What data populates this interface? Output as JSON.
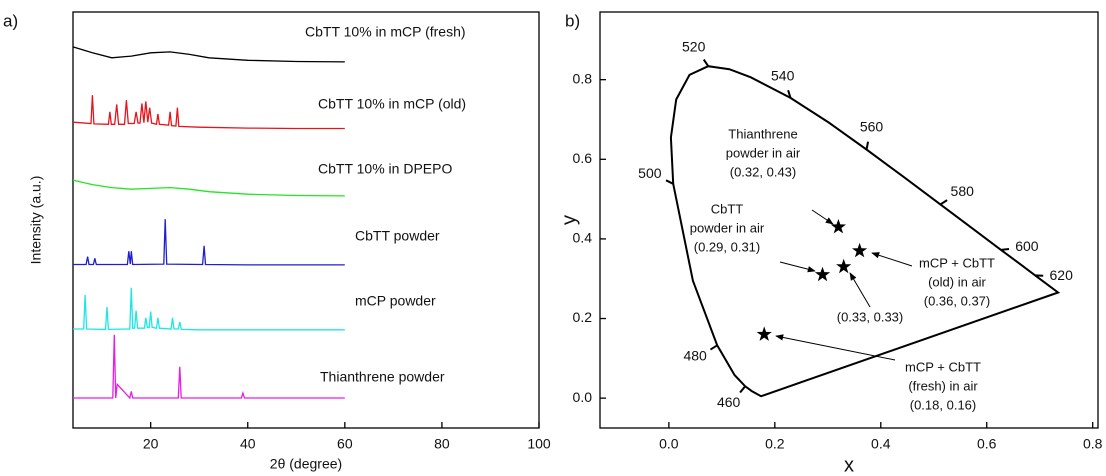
{
  "chart_data": [
    {
      "type": "line",
      "panel_label": "a)",
      "x_label": "2θ (degree)",
      "y_label": "Intensity (a.u.)",
      "xlim": [
        4,
        100
      ],
      "xticks": [
        20,
        40,
        60,
        80,
        100
      ],
      "ylim": [
        0,
        10
      ],
      "series": [
        {
          "name": "CbTT 10% in mCP (fresh)",
          "color": "#000000",
          "x": [
            4,
            8,
            12,
            16,
            20,
            24,
            28,
            32,
            40,
            50,
            60
          ],
          "values": [
            9.16,
            9.02,
            8.9,
            8.94,
            9.02,
            9.04,
            8.98,
            8.9,
            8.84,
            8.81,
            8.8
          ]
        },
        {
          "name": "CbTT 10% in mCP (old)",
          "color": "#e8141c",
          "x": [
            4,
            7.7,
            8,
            8.3,
            11.3,
            11.6,
            11.9,
            12.6,
            13,
            13.4,
            14.6,
            15,
            15.4,
            16.6,
            17,
            17.4,
            17.8,
            18.2,
            18.6,
            19,
            19.4,
            19.8,
            20.2,
            20.6,
            21.2,
            21.5,
            21.8,
            23.7,
            24,
            24.3,
            25.2,
            25.5,
            25.8,
            30,
            40,
            50,
            60
          ],
          "values": [
            7.35,
            7.32,
            8.0,
            7.31,
            7.3,
            7.6,
            7.3,
            7.3,
            7.78,
            7.3,
            7.3,
            7.88,
            7.32,
            7.32,
            7.6,
            7.33,
            7.33,
            7.8,
            7.34,
            7.85,
            7.35,
            7.7,
            7.33,
            7.32,
            7.3,
            7.55,
            7.3,
            7.28,
            7.6,
            7.27,
            7.26,
            7.7,
            7.25,
            7.23,
            7.21,
            7.2,
            7.2
          ]
        },
        {
          "name": "CbTT 10% in DPEPO",
          "color": "#22e622",
          "x": [
            4,
            8,
            12,
            16,
            20,
            24,
            28,
            32,
            40,
            50,
            60
          ],
          "values": [
            5.96,
            5.85,
            5.78,
            5.74,
            5.76,
            5.78,
            5.74,
            5.68,
            5.62,
            5.59,
            5.58
          ]
        },
        {
          "name": "CbTT powder",
          "color": "#1f1fd0",
          "x": [
            4,
            6.7,
            7,
            7.3,
            8.2,
            8.5,
            8.8,
            15.2,
            15.5,
            15.8,
            16,
            16.3,
            22.7,
            23,
            23.3,
            30.7,
            31,
            31.3,
            40,
            50,
            60
          ],
          "values": [
            3.93,
            3.93,
            4.12,
            3.93,
            3.93,
            4.08,
            3.93,
            3.93,
            4.25,
            3.94,
            4.25,
            3.93,
            3.94,
            5.02,
            3.94,
            3.93,
            4.38,
            3.93,
            3.92,
            3.92,
            3.92
          ]
        },
        {
          "name": "mCP powder",
          "color": "#1ee6e6",
          "x": [
            4,
            6.2,
            6.5,
            6.8,
            10.7,
            11,
            11.3,
            15.7,
            16,
            16.3,
            16.7,
            17,
            17.3,
            18.7,
            19,
            19.3,
            19.7,
            20,
            20.3,
            21.2,
            21.5,
            21.8,
            24.2,
            24.5,
            24.8,
            25.7,
            26,
            26.3,
            30,
            40,
            50,
            60
          ],
          "values": [
            2.38,
            2.38,
            3.2,
            2.38,
            2.37,
            2.91,
            2.37,
            2.38,
            3.37,
            2.4,
            2.4,
            2.82,
            2.4,
            2.4,
            2.65,
            2.42,
            2.42,
            2.8,
            2.42,
            2.4,
            2.65,
            2.4,
            2.38,
            2.65,
            2.38,
            2.38,
            2.55,
            2.37,
            2.36,
            2.36,
            2.36,
            2.36
          ]
        },
        {
          "name": "Thianthrene powder",
          "color": "#e61ee6",
          "x": [
            4,
            12.2,
            12.5,
            12.8,
            13.1,
            15.7,
            16,
            16.3,
            25.7,
            26,
            26.3,
            38.7,
            39,
            39.3,
            50,
            60
          ],
          "values": [
            0.72,
            0.72,
            2.24,
            0.72,
            1.05,
            0.72,
            0.88,
            0.72,
            0.72,
            1.47,
            0.72,
            0.72,
            0.84,
            0.72,
            0.72,
            0.72
          ]
        }
      ]
    },
    {
      "type": "cie",
      "panel_label": "b)",
      "x_label": "x",
      "y_label": "y",
      "xlim": [
        -0.13,
        0.81
      ],
      "xticks": [
        {
          "value": 0,
          "label": "0.0"
        },
        {
          "value": 0.2,
          "label": "0.2"
        },
        {
          "value": 0.4,
          "label": "0.4"
        },
        {
          "value": 0.6,
          "label": "0.6"
        },
        {
          "value": 0.8,
          "label": "0.8"
        }
      ],
      "ylim": [
        -0.075,
        0.97
      ],
      "yticks": [
        {
          "value": 0,
          "label": "0.0"
        },
        {
          "value": 0.2,
          "label": "0.2"
        },
        {
          "value": 0.4,
          "label": "0.4"
        },
        {
          "value": 0.6,
          "label": "0.6"
        },
        {
          "value": 0.8,
          "label": "0.8"
        }
      ],
      "locus_x": [
        0.1741,
        0.1566,
        0.144,
        0.1241,
        0.0913,
        0.0454,
        0.0082,
        0.0039,
        0.0139,
        0.0389,
        0.0743,
        0.1142,
        0.1547,
        0.2296,
        0.3016,
        0.3731,
        0.4441,
        0.5125,
        0.5752,
        0.627,
        0.6658,
        0.6915,
        0.719,
        0.7347
      ],
      "locus_y": [
        0.005,
        0.0177,
        0.0297,
        0.0578,
        0.1327,
        0.295,
        0.5384,
        0.6548,
        0.7502,
        0.812,
        0.8338,
        0.8262,
        0.8059,
        0.7543,
        0.6923,
        0.6245,
        0.5547,
        0.4866,
        0.4242,
        0.3725,
        0.334,
        0.3083,
        0.2809,
        0.2653
      ],
      "wavelengths": [
        460,
        480,
        500,
        520,
        540,
        560,
        580,
        600,
        620
      ],
      "wavelength_x": [
        0.144,
        0.0913,
        0.0082,
        0.0743,
        0.2296,
        0.3731,
        0.5125,
        0.627,
        0.6915
      ],
      "wavelength_y": [
        0.0297,
        0.1327,
        0.5384,
        0.8338,
        0.7543,
        0.6245,
        0.4866,
        0.3725,
        0.3083
      ],
      "points": [
        {
          "label": [
            "Thianthrene",
            "powder in air",
            "(0.32, 0.43)"
          ],
          "x": 0.32,
          "y": 0.43
        },
        {
          "label": [
            "CbTT",
            "powder in air",
            "(0.29, 0.31)"
          ],
          "x": 0.29,
          "y": 0.31
        },
        {
          "label": [
            "mCP + CbTT",
            "(old) in air",
            "(0.36, 0.37)"
          ],
          "x": 0.36,
          "y": 0.37
        },
        {
          "label": [
            "(0.33, 0.33)"
          ],
          "x": 0.33,
          "y": 0.33
        },
        {
          "label": [
            "mCP + CbTT",
            "(fresh) in air",
            "(0.18, 0.16)"
          ],
          "x": 0.18,
          "y": 0.16
        }
      ]
    }
  ]
}
